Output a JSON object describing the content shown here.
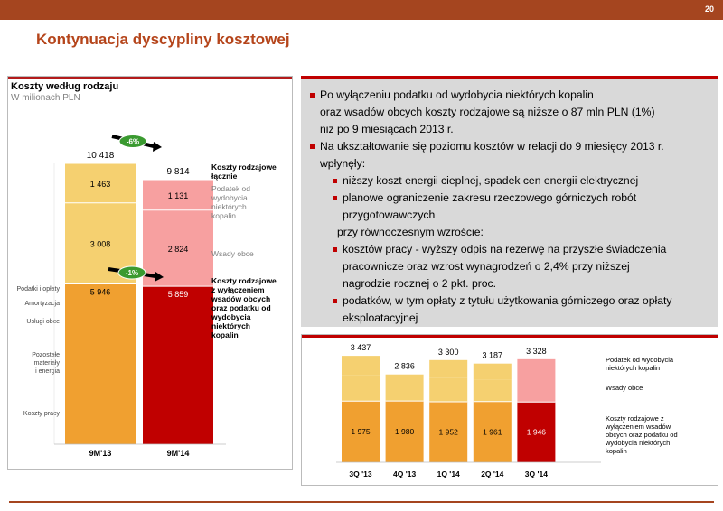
{
  "page": {
    "number": "20",
    "title": "Kontynuacja dyscypliny kosztowej",
    "colors": {
      "accent": "#a5451f",
      "red": "#c00000",
      "orange": "#f0a030",
      "light_yellow": "#f5d070",
      "pink": "#f7a0a0",
      "dark_red": "#c00000"
    }
  },
  "bullets": [
    {
      "level": 1,
      "lines": [
        "Po wyłączeniu podatku od wydobycia niektórych kopalin",
        "oraz wsadów obcych koszty rodzajowe są niższe o 87 mln PLN (1%)",
        "niż po 9 miesiącach 2013 r."
      ]
    },
    {
      "level": 1,
      "lines": [
        "Na ukształtowanie się poziomu kosztów w relacji do 9 miesięcy 2013 r.",
        "wpłynęły:"
      ]
    },
    {
      "level": 2,
      "lines": [
        "niższy koszt energii cieplnej, spadek cen energii elektrycznej"
      ]
    },
    {
      "level": 2,
      "lines": [
        "planowe ograniczenie zakresu rzeczowego górniczych robót",
        "przygotowawczych"
      ]
    },
    {
      "level": 0,
      "lines": [
        "przy równoczesnym wzroście:"
      ]
    },
    {
      "level": 2,
      "lines": [
        "kosztów pracy - wyższy odpis na rezerwę na przyszłe świadczenia",
        "pracownicze oraz wzrost wynagrodzeń o 2,4% przy niższej",
        "nagrodzie rocznej o 2 pkt. proc."
      ]
    },
    {
      "level": 2,
      "lines": [
        "podatków, w tym opłaty z tytułu użytkowania górniczego oraz opłaty",
        "eksploatacyjnej"
      ]
    }
  ],
  "chart_data": [
    {
      "type": "bar",
      "title": "Koszty według rodzaju",
      "subtitle": "W milionach PLN",
      "categories": [
        "9M'13",
        "9M'14"
      ],
      "totals": [
        "10 418",
        "9 814"
      ],
      "series": [
        {
          "name": "Koszty rodzajowe z wyłączeniem wsadów obcych oraz podatku od wydobycia niektórych kopalin",
          "values": [
            5946,
            5859
          ],
          "labels": [
            "5 946",
            "5 859"
          ]
        },
        {
          "name": "Wsady obce",
          "values": [
            3008,
            2824
          ],
          "labels": [
            "3 008",
            "2 824"
          ]
        },
        {
          "name": "Podatek od wydobycia niektórych kopalin",
          "values": [
            1463,
            1131
          ],
          "labels": [
            "1 463",
            "1 131"
          ]
        }
      ],
      "legend": {
        "total": "Koszty rodzajowe łącznie",
        "tax": "Podatek od wydobycia niektórych kopalin",
        "feed": "Wsady obce",
        "base": "Koszty rodzajowe z wyłączeniem wsadów obcych oraz podatku od wydobycia niektórych kopalin"
      },
      "base_breakdown_labels": [
        "Podatki i opłaty",
        "Amortyzacja",
        "Usługi obce",
        "Pozostałe materiały i energia",
        "Koszty pracy"
      ],
      "annotations": [
        {
          "label": "-6%",
          "between": "totals"
        },
        {
          "label": "-1%",
          "between": "base"
        }
      ]
    },
    {
      "type": "bar",
      "categories": [
        "3Q '13",
        "4Q '13",
        "1Q '14",
        "2Q '14",
        "3Q '14"
      ],
      "totals": [
        "3 437",
        "2 836",
        "3 300",
        "3 187",
        "3 328"
      ],
      "total_values": [
        3437,
        2836,
        3300,
        3187,
        3328
      ],
      "base_values": [
        1975,
        1980,
        1952,
        1961,
        1946
      ],
      "base_labels": [
        "1 975",
        "1 980",
        "1 952",
        "1 961",
        "1 946"
      ],
      "legend": {
        "tax": "Podatek od wydobycia niektórych kopalin",
        "feed": "Wsady obce",
        "base": "Koszty rodzajowe z wyłączeniem wsadów obcych oraz podatku od wydobycia niektórych kopalin"
      }
    }
  ]
}
